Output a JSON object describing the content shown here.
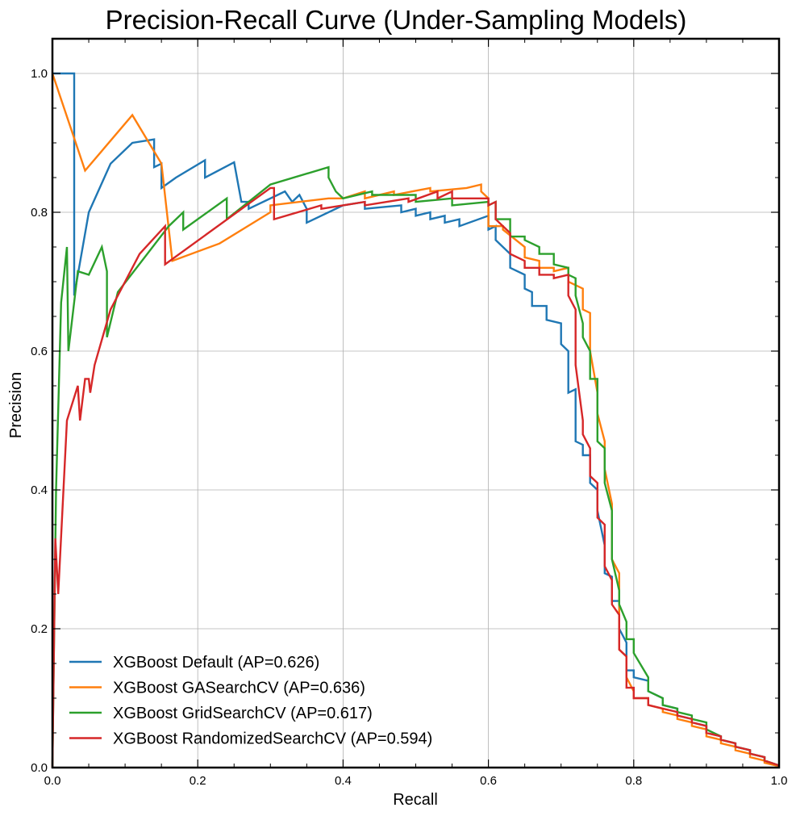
{
  "chart_data": {
    "type": "line",
    "title": "Precision-Recall Curve (Under-Sampling Models)",
    "xlabel": "Recall",
    "ylabel": "Precision",
    "xlim": [
      0,
      1
    ],
    "ylim": [
      0,
      1.05
    ],
    "xticks": [
      0.0,
      0.2,
      0.4,
      0.6,
      0.8,
      1.0
    ],
    "yticks": [
      0.0,
      0.2,
      0.4,
      0.6,
      0.8,
      1.0
    ],
    "xtick_labels": [
      "0.0",
      "0.2",
      "0.4",
      "0.6",
      "0.8",
      "1.0"
    ],
    "ytick_labels": [
      "0.0",
      "0.2",
      "0.4",
      "0.6",
      "0.8",
      "1.0"
    ],
    "grid": true,
    "legend_position": "lower-left",
    "series": [
      {
        "name": "XGBoost Default (AP=0.626)",
        "color": "#1f77b4",
        "x": [
          0.0,
          0.03,
          0.03,
          0.05,
          0.08,
          0.11,
          0.14,
          0.14,
          0.15,
          0.15,
          0.17,
          0.21,
          0.21,
          0.25,
          0.26,
          0.27,
          0.27,
          0.31,
          0.32,
          0.33,
          0.34,
          0.35,
          0.35,
          0.4,
          0.43,
          0.43,
          0.48,
          0.48,
          0.5,
          0.5,
          0.52,
          0.52,
          0.54,
          0.54,
          0.56,
          0.56,
          0.6,
          0.6,
          0.61,
          0.61,
          0.63,
          0.63,
          0.65,
          0.65,
          0.66,
          0.66,
          0.68,
          0.68,
          0.7,
          0.7,
          0.71,
          0.71,
          0.72,
          0.72,
          0.73,
          0.73,
          0.74,
          0.74,
          0.75,
          0.75,
          0.76,
          0.76,
          0.77,
          0.77,
          0.78,
          0.78,
          0.79,
          0.79,
          0.8,
          0.8,
          0.82,
          0.82,
          0.84,
          0.84,
          0.86,
          0.86,
          0.88,
          0.88,
          0.9,
          0.9,
          0.92,
          0.92,
          0.94,
          0.94,
          0.96,
          0.96,
          0.98,
          0.98,
          1.0
        ],
        "y": [
          1.0,
          1.0,
          0.68,
          0.8,
          0.87,
          0.9,
          0.905,
          0.865,
          0.87,
          0.835,
          0.85,
          0.875,
          0.85,
          0.872,
          0.815,
          0.815,
          0.805,
          0.825,
          0.83,
          0.815,
          0.825,
          0.805,
          0.785,
          0.81,
          0.815,
          0.805,
          0.81,
          0.8,
          0.805,
          0.795,
          0.8,
          0.79,
          0.795,
          0.785,
          0.79,
          0.78,
          0.795,
          0.775,
          0.78,
          0.76,
          0.74,
          0.72,
          0.71,
          0.69,
          0.685,
          0.665,
          0.665,
          0.645,
          0.64,
          0.61,
          0.6,
          0.54,
          0.545,
          0.47,
          0.465,
          0.45,
          0.45,
          0.41,
          0.4,
          0.37,
          0.32,
          0.28,
          0.275,
          0.24,
          0.24,
          0.2,
          0.18,
          0.14,
          0.14,
          0.13,
          0.125,
          0.11,
          0.1,
          0.09,
          0.085,
          0.075,
          0.07,
          0.065,
          0.06,
          0.05,
          0.045,
          0.04,
          0.035,
          0.03,
          0.025,
          0.02,
          0.015,
          0.01,
          0.003
        ]
      },
      {
        "name": "XGBoost GASearchCV (AP=0.636)",
        "color": "#ff7f0e",
        "x": [
          0.0,
          0.045,
          0.11,
          0.15,
          0.165,
          0.23,
          0.3,
          0.3,
          0.38,
          0.4,
          0.43,
          0.43,
          0.47,
          0.47,
          0.52,
          0.52,
          0.57,
          0.59,
          0.59,
          0.6,
          0.6,
          0.62,
          0.62,
          0.65,
          0.65,
          0.67,
          0.67,
          0.69,
          0.69,
          0.71,
          0.71,
          0.73,
          0.73,
          0.74,
          0.74,
          0.75,
          0.75,
          0.76,
          0.76,
          0.77,
          0.77,
          0.78,
          0.78,
          0.79,
          0.79,
          0.8,
          0.8,
          0.82,
          0.82,
          0.84,
          0.84,
          0.86,
          0.86,
          0.88,
          0.88,
          0.9,
          0.9,
          0.92,
          0.92,
          0.94,
          0.94,
          0.96,
          0.96,
          0.98,
          0.98,
          1.0
        ],
        "y": [
          1.0,
          0.86,
          0.94,
          0.87,
          0.73,
          0.755,
          0.8,
          0.81,
          0.82,
          0.82,
          0.83,
          0.82,
          0.83,
          0.825,
          0.835,
          0.83,
          0.835,
          0.84,
          0.83,
          0.82,
          0.78,
          0.78,
          0.775,
          0.75,
          0.735,
          0.73,
          0.72,
          0.72,
          0.715,
          0.72,
          0.7,
          0.69,
          0.66,
          0.655,
          0.6,
          0.54,
          0.51,
          0.47,
          0.43,
          0.38,
          0.3,
          0.28,
          0.17,
          0.16,
          0.13,
          0.11,
          0.1,
          0.1,
          0.09,
          0.085,
          0.08,
          0.075,
          0.07,
          0.065,
          0.06,
          0.055,
          0.045,
          0.04,
          0.035,
          0.03,
          0.025,
          0.02,
          0.015,
          0.01,
          0.007,
          0.002
        ]
      },
      {
        "name": "XGBoost GridSearchCV (AP=0.617)",
        "color": "#2ca02c",
        "x": [
          0.0,
          0.005,
          0.012,
          0.02,
          0.022,
          0.035,
          0.05,
          0.068,
          0.075,
          0.075,
          0.09,
          0.16,
          0.18,
          0.18,
          0.24,
          0.24,
          0.3,
          0.38,
          0.38,
          0.39,
          0.4,
          0.44,
          0.44,
          0.5,
          0.5,
          0.55,
          0.55,
          0.6,
          0.6,
          0.61,
          0.61,
          0.63,
          0.63,
          0.65,
          0.65,
          0.67,
          0.67,
          0.69,
          0.69,
          0.71,
          0.71,
          0.72,
          0.72,
          0.73,
          0.73,
          0.74,
          0.74,
          0.75,
          0.75,
          0.76,
          0.76,
          0.77,
          0.77,
          0.78,
          0.78,
          0.79,
          0.79,
          0.8,
          0.8,
          0.82,
          0.82,
          0.84,
          0.84,
          0.86,
          0.86,
          0.88,
          0.88,
          0.9,
          0.9,
          0.92,
          0.92,
          0.94,
          0.94,
          0.96,
          0.96,
          0.98,
          0.98,
          1.0
        ],
        "y": [
          0.0,
          0.4,
          0.67,
          0.75,
          0.6,
          0.715,
          0.71,
          0.75,
          0.715,
          0.62,
          0.685,
          0.78,
          0.8,
          0.775,
          0.82,
          0.79,
          0.84,
          0.865,
          0.85,
          0.83,
          0.82,
          0.83,
          0.825,
          0.825,
          0.815,
          0.82,
          0.81,
          0.815,
          0.81,
          0.815,
          0.79,
          0.79,
          0.765,
          0.765,
          0.76,
          0.75,
          0.74,
          0.74,
          0.725,
          0.72,
          0.71,
          0.705,
          0.68,
          0.64,
          0.62,
          0.6,
          0.56,
          0.56,
          0.47,
          0.46,
          0.41,
          0.37,
          0.3,
          0.255,
          0.235,
          0.21,
          0.185,
          0.185,
          0.165,
          0.13,
          0.11,
          0.1,
          0.09,
          0.085,
          0.08,
          0.075,
          0.07,
          0.065,
          0.055,
          0.045,
          0.04,
          0.035,
          0.03,
          0.025,
          0.02,
          0.015,
          0.01,
          0.003
        ]
      },
      {
        "name": "XGBoost RandomizedSearchCV (AP=0.594)",
        "color": "#d62728",
        "x": [
          0.0,
          0.004,
          0.008,
          0.02,
          0.035,
          0.038,
          0.045,
          0.05,
          0.052,
          0.058,
          0.08,
          0.12,
          0.155,
          0.155,
          0.3,
          0.305,
          0.305,
          0.37,
          0.37,
          0.43,
          0.43,
          0.49,
          0.49,
          0.53,
          0.53,
          0.55,
          0.55,
          0.6,
          0.6,
          0.61,
          0.61,
          0.63,
          0.63,
          0.65,
          0.65,
          0.67,
          0.67,
          0.69,
          0.69,
          0.71,
          0.71,
          0.72,
          0.72,
          0.73,
          0.73,
          0.74,
          0.74,
          0.75,
          0.75,
          0.76,
          0.76,
          0.77,
          0.77,
          0.78,
          0.78,
          0.79,
          0.79,
          0.8,
          0.8,
          0.82,
          0.82,
          0.84,
          0.84,
          0.86,
          0.86,
          0.88,
          0.88,
          0.9,
          0.9,
          0.92,
          0.92,
          0.94,
          0.94,
          0.96,
          0.96,
          0.98,
          0.98,
          1.0
        ],
        "y": [
          0.0,
          0.33,
          0.25,
          0.5,
          0.55,
          0.5,
          0.56,
          0.56,
          0.54,
          0.58,
          0.66,
          0.74,
          0.78,
          0.725,
          0.835,
          0.835,
          0.79,
          0.81,
          0.805,
          0.815,
          0.81,
          0.82,
          0.815,
          0.83,
          0.82,
          0.83,
          0.82,
          0.82,
          0.81,
          0.815,
          0.79,
          0.77,
          0.74,
          0.73,
          0.72,
          0.72,
          0.71,
          0.71,
          0.705,
          0.71,
          0.68,
          0.66,
          0.58,
          0.5,
          0.48,
          0.46,
          0.42,
          0.41,
          0.36,
          0.35,
          0.29,
          0.27,
          0.235,
          0.22,
          0.17,
          0.16,
          0.115,
          0.115,
          0.1,
          0.1,
          0.09,
          0.085,
          0.085,
          0.08,
          0.075,
          0.07,
          0.065,
          0.06,
          0.05,
          0.045,
          0.04,
          0.035,
          0.03,
          0.025,
          0.02,
          0.015,
          0.01,
          0.003
        ]
      }
    ]
  }
}
